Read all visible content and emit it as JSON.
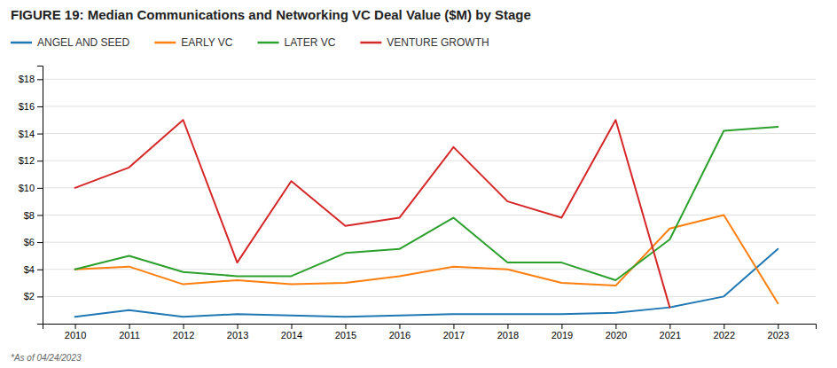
{
  "chart_data": {
    "type": "line",
    "title": "FIGURE 19:  Median Communications and Networking VC Deal Value ($M) by Stage",
    "annotations": [
      "*As of 04/24/2023"
    ],
    "x": [
      2010,
      2011,
      2012,
      2013,
      2014,
      2015,
      2016,
      2017,
      2018,
      2019,
      2020,
      2021,
      2022,
      2023
    ],
    "series": [
      {
        "name": "ANGEL AND SEED",
        "values": [
          0.5,
          1.0,
          0.5,
          0.7,
          0.6,
          0.5,
          0.6,
          0.7,
          0.7,
          0.7,
          0.8,
          1.2,
          2.0,
          5.5
        ]
      },
      {
        "name": "EARLY VC",
        "values": [
          4.0,
          4.2,
          2.9,
          3.2,
          2.9,
          3.0,
          3.5,
          4.2,
          4.0,
          3.0,
          2.8,
          7.0,
          8.0,
          1.5
        ]
      },
      {
        "name": "LATER VC",
        "values": [
          4.0,
          5.0,
          3.8,
          3.5,
          3.5,
          5.2,
          5.5,
          7.8,
          4.5,
          4.5,
          3.2,
          6.2,
          14.2,
          14.5
        ]
      },
      {
        "name": "VENTURE GROWTH",
        "values": [
          10.0,
          11.5,
          15.0,
          4.5,
          10.5,
          7.2,
          7.8,
          13.0,
          9.0,
          7.8,
          15.0,
          1.2,
          null,
          null
        ]
      }
    ],
    "xlim": [
      2009.4,
      2023.7
    ],
    "xticks": [
      2010,
      2011,
      2012,
      2013,
      2014,
      2015,
      2016,
      2017,
      2018,
      2019,
      2020,
      2021,
      2022,
      2023
    ],
    "ylim": [
      0,
      19
    ],
    "yticks": [
      {
        "value": 2,
        "label": "$2"
      },
      {
        "value": 4,
        "label": "$4"
      },
      {
        "value": 6,
        "label": "$6"
      },
      {
        "value": 8,
        "label": "$8"
      },
      {
        "value": 10,
        "label": "$10"
      },
      {
        "value": 12,
        "label": "$12"
      },
      {
        "value": 14,
        "label": "$14"
      },
      {
        "value": 16,
        "label": "$16"
      },
      {
        "value": 18,
        "label": "$18"
      }
    ],
    "grid": true,
    "legend": "top"
  }
}
